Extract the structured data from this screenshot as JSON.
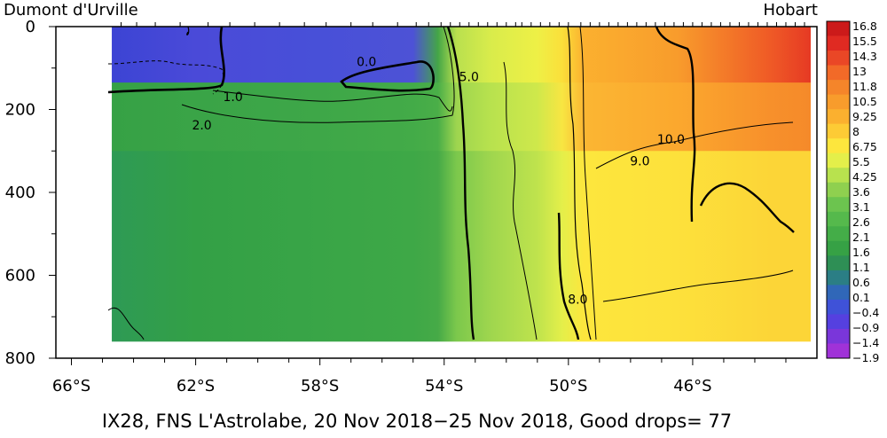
{
  "chart_data": {
    "type": "heatmap",
    "title": "IX28, FNS L'Astrolabe, 20 Nov 2018−25 Nov 2018, Good drops= 77",
    "left_label": "Dumont d'Urville",
    "right_label": "Hobart",
    "x_ticks": [
      "66°S",
      "62°S",
      "58°S",
      "54°S",
      "50°S",
      "46°S"
    ],
    "x_tick_values": [
      66,
      62,
      58,
      54,
      50,
      46
    ],
    "y_ticks": [
      "0",
      "200",
      "400",
      "600",
      "800"
    ],
    "y_tick_values": [
      0,
      200,
      400,
      600,
      800
    ],
    "xlim": [
      66.5,
      42
    ],
    "ylim": [
      0,
      800
    ],
    "data_extent_x": [
      64.7,
      42.2
    ],
    "data_extent_y": [
      0,
      760
    ],
    "colorbar_labels": [
      "16.8",
      "15.5",
      "14.3",
      "13",
      "11.8",
      "10.5",
      "9.25",
      "8",
      "6.75",
      "5.5",
      "4.25",
      "3.6",
      "3.1",
      "2.6",
      "2.1",
      "1.6",
      "1.1",
      "0.6",
      "0.1",
      "−0.4",
      "−0.9",
      "−1.4",
      "−1.9"
    ],
    "colorbar_colors": [
      "#cc1a1a",
      "#e02a22",
      "#ea4726",
      "#f26a28",
      "#f5852a",
      "#f89c2c",
      "#fbb02f",
      "#fdcb35",
      "#fde63d",
      "#e4ef4a",
      "#b8e24e",
      "#8fd04f",
      "#6cc44f",
      "#55b94c",
      "#44ad48",
      "#36a145",
      "#2e8f55",
      "#2b7e85",
      "#3067b8",
      "#3f52d8",
      "#5540e0",
      "#7a36da",
      "#a032d8"
    ],
    "section_profile": [
      {
        "lat": 64.7,
        "top": "#3c44d4",
        "mid": "#36a145",
        "deep": "#2e9a55"
      },
      {
        "lat": 62.0,
        "top": "#4a4ad8",
        "mid": "#3aa447",
        "deep": "#33a046"
      },
      {
        "lat": 58.0,
        "top": "#4850d8",
        "mid": "#3ea748",
        "deep": "#39a547"
      },
      {
        "lat": 55.0,
        "top": "#4d52d6",
        "mid": "#43ab48",
        "deep": "#3ea847"
      },
      {
        "lat": 54.2,
        "top": "#44a647",
        "mid": "#4aae48",
        "deep": "#46aa47"
      },
      {
        "lat": 53.6,
        "top": "#b9e04e",
        "mid": "#9ed54f",
        "deep": "#7cc84c"
      },
      {
        "lat": 52.5,
        "top": "#d9ec4b",
        "mid": "#b8e24e",
        "deep": "#9fd64e"
      },
      {
        "lat": 51.0,
        "top": "#eef046",
        "mid": "#cfe84b",
        "deep": "#bfe34d"
      },
      {
        "lat": 50.2,
        "top": "#fbdf3a",
        "mid": "#f8e642",
        "deep": "#e4ef4a"
      },
      {
        "lat": 49.5,
        "top": "#fbb02f",
        "mid": "#fbb633",
        "deep": "#fde63d"
      },
      {
        "lat": 46.5,
        "top": "#f89c2c",
        "mid": "#fba82e",
        "deep": "#fde13b"
      },
      {
        "lat": 43.5,
        "top": "#ef5a26",
        "mid": "#f7902b",
        "deep": "#fcd537"
      },
      {
        "lat": 42.2,
        "top": "#e63a24",
        "mid": "#f58a2a",
        "deep": "#fcd537"
      }
    ],
    "contour_labels": [
      {
        "text": "0.0",
        "lat": 56.5,
        "depth": 95
      },
      {
        "text": "1.0",
        "lat": 60.8,
        "depth": 180
      },
      {
        "text": "2.0",
        "lat": 61.8,
        "depth": 248
      },
      {
        "text": "5.0",
        "lat": 53.2,
        "depth": 132
      },
      {
        "text": "8.0",
        "lat": 49.7,
        "depth": 668
      },
      {
        "text": "9.0",
        "lat": 47.7,
        "depth": 335
      },
      {
        "text": "10.0",
        "lat": 46.7,
        "depth": 282
      }
    ],
    "station_ticks": [
      64.4,
      63.9,
      63.3,
      62.5,
      61.6,
      60.9,
      60.1,
      59.3,
      58.5,
      57.8,
      57.0,
      56.3,
      55.5,
      54.9,
      54.5,
      54.1,
      53.8,
      53.5,
      53.2,
      52.9,
      52.6,
      52.3,
      52.0,
      51.7,
      51.5,
      51.2,
      50.9,
      50.6,
      50.3,
      50.0,
      49.6,
      49.3,
      49.0,
      48.7,
      48.4,
      48.1,
      47.8,
      47.5,
      47.2,
      46.9,
      46.6,
      46.3,
      46.0,
      45.7,
      45.4,
      45.1,
      44.8,
      44.5,
      44.2,
      43.9,
      43.6,
      43.3,
      43.0,
      42.7,
      42.4
    ]
  }
}
